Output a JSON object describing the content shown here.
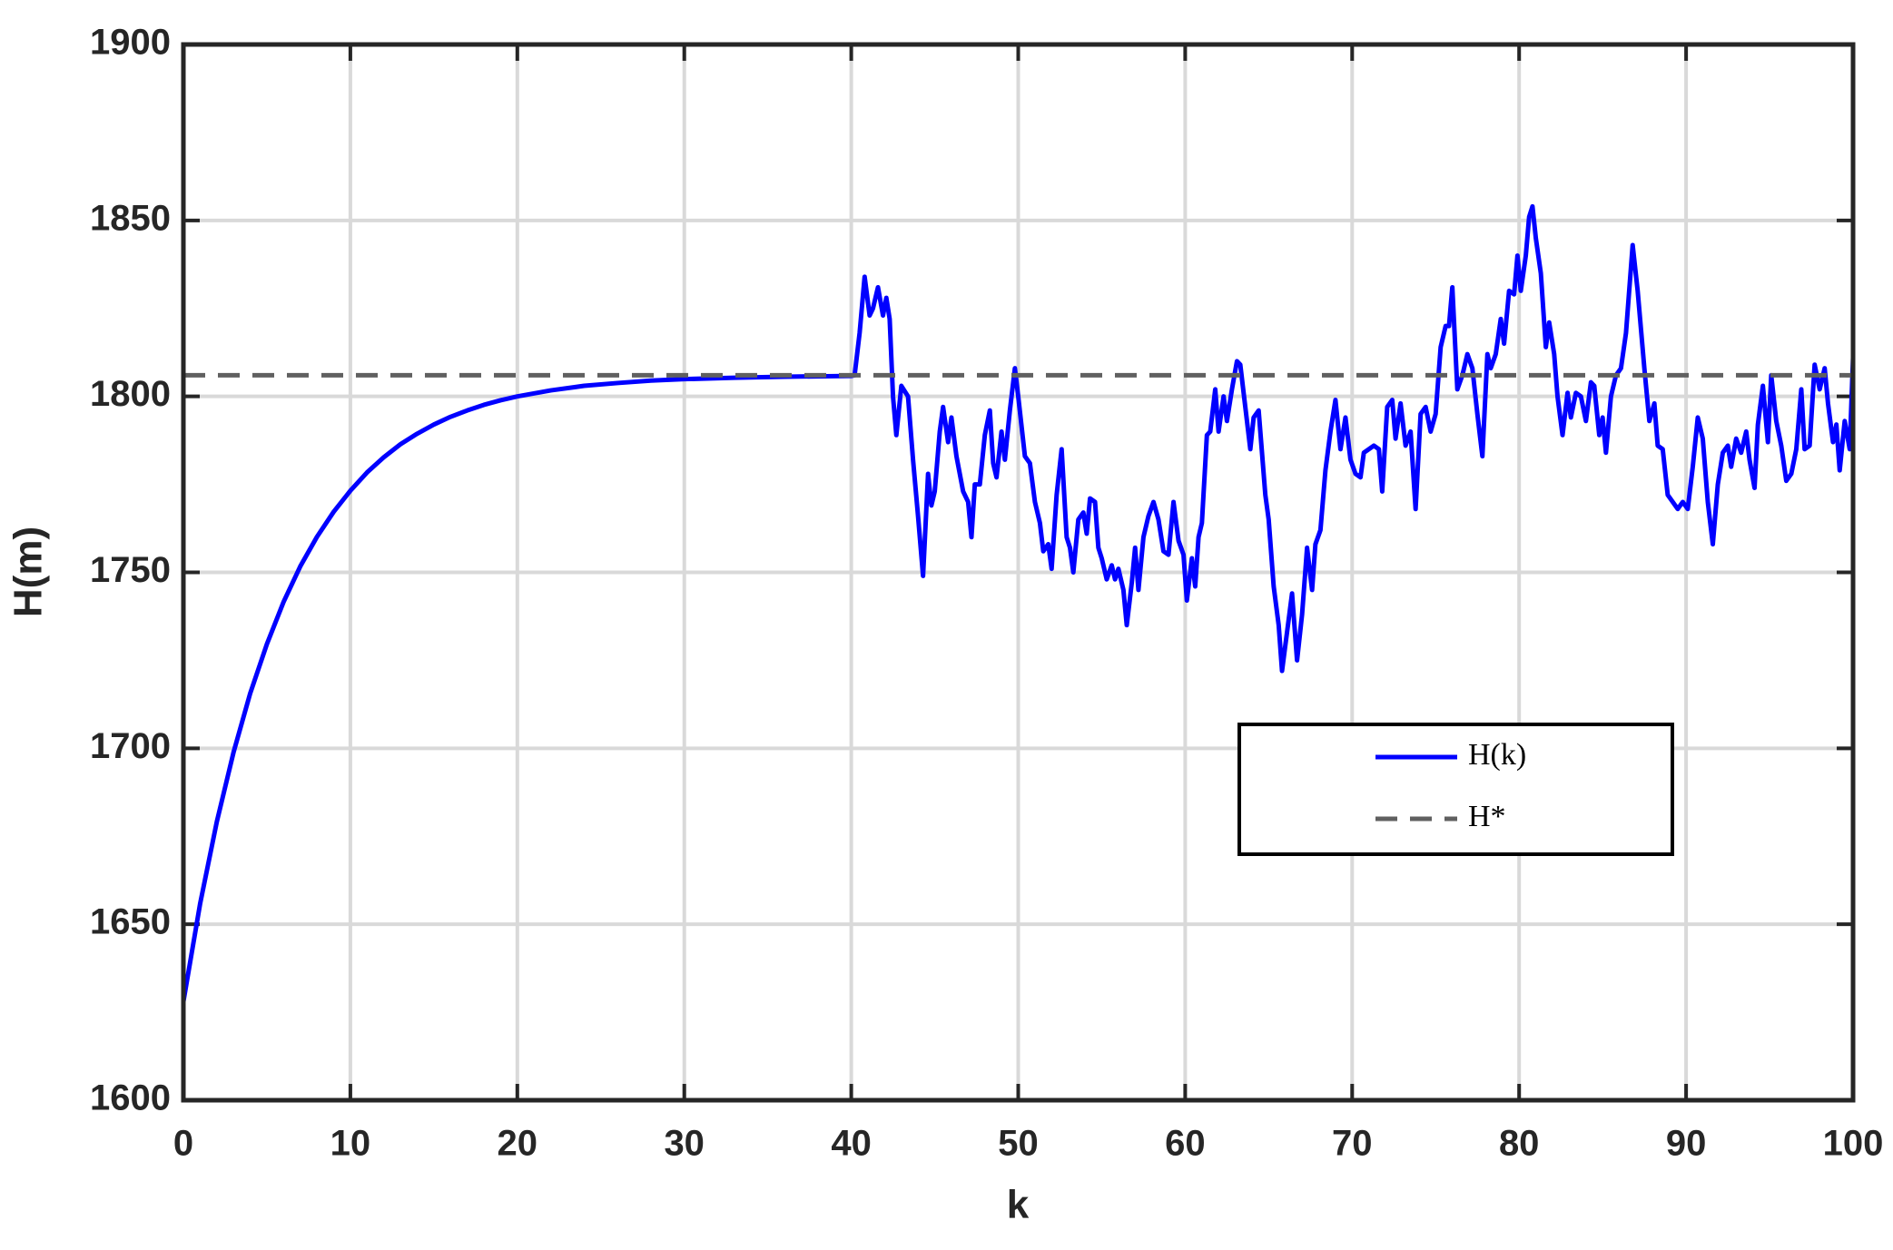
{
  "chart_data": {
    "type": "line",
    "xlabel": "k",
    "ylabel": "H(m)",
    "xlim": [
      0,
      100
    ],
    "xticks": [
      0,
      10,
      20,
      30,
      40,
      50,
      60,
      70,
      80,
      90,
      100
    ],
    "ylim": [
      1600,
      1900
    ],
    "yticks": [
      1600,
      1650,
      1700,
      1750,
      1800,
      1850,
      1900
    ],
    "grid": true,
    "series": [
      {
        "name": "H(k)",
        "color": "#0000ff",
        "x": [
          0,
          1,
          2,
          3,
          4,
          5,
          6,
          7,
          8,
          9,
          10,
          11,
          12,
          13,
          14,
          15,
          16,
          17,
          18,
          19,
          20,
          22,
          24,
          26,
          28,
          30,
          33,
          36,
          40,
          40.2,
          40.5,
          40.8,
          41.1,
          41.3,
          41.6,
          41.9,
          42.1,
          42.3,
          42.5,
          42.7,
          43.0,
          43.4,
          43.7,
          44.0,
          44.3,
          44.6,
          44.8,
          45.0,
          45.3,
          45.5,
          45.8,
          46.0,
          46.3,
          46.7,
          47.0,
          47.2,
          47.4,
          47.7,
          48.0,
          48.3,
          48.5,
          48.7,
          49.0,
          49.2,
          49.5,
          49.8,
          50.0,
          50.4,
          50.7,
          51.0,
          51.3,
          51.5,
          51.8,
          52.0,
          52.3,
          52.6,
          52.9,
          53.1,
          53.3,
          53.6,
          53.9,
          54.1,
          54.3,
          54.6,
          54.8,
          55.0,
          55.3,
          55.6,
          55.8,
          56.0,
          56.3,
          56.5,
          56.8,
          57.0,
          57.2,
          57.5,
          57.8,
          58.1,
          58.4,
          58.7,
          59.0,
          59.3,
          59.6,
          59.9,
          60.1,
          60.4,
          60.6,
          60.8,
          61.0,
          61.3,
          61.5,
          61.8,
          62.0,
          62.3,
          62.5,
          62.8,
          63.1,
          63.3,
          63.6,
          63.9,
          64.1,
          64.4,
          64.8,
          65.0,
          65.3,
          65.6,
          65.8,
          66.1,
          66.4,
          66.7,
          67.0,
          67.3,
          67.6,
          67.8,
          68.1,
          68.4,
          68.7,
          69.0,
          69.3,
          69.6,
          69.9,
          70.2,
          70.5,
          70.7,
          71.0,
          71.3,
          71.6,
          71.8,
          72.1,
          72.4,
          72.6,
          72.9,
          73.2,
          73.5,
          73.8,
          74.1,
          74.4,
          74.7,
          75.0,
          75.3,
          75.6,
          75.8,
          76.0,
          76.3,
          76.6,
          76.9,
          77.2,
          77.5,
          77.8,
          78.1,
          78.3,
          78.6,
          78.9,
          79.1,
          79.4,
          79.7,
          79.9,
          80.1,
          80.4,
          80.6,
          80.8,
          81.0,
          81.3,
          81.6,
          81.8,
          82.1,
          82.3,
          82.6,
          82.9,
          83.1,
          83.4,
          83.7,
          84.0,
          84.3,
          84.5,
          84.8,
          85.0,
          85.2,
          85.5,
          85.8,
          86.1,
          86.4,
          86.8,
          87.1,
          87.5,
          87.8,
          88.1,
          88.3,
          88.6,
          88.9,
          89.2,
          89.5,
          89.8,
          90.1,
          90.4,
          90.7,
          91.0,
          91.3,
          91.6,
          91.9,
          92.2,
          92.5,
          92.7,
          93.0,
          93.3,
          93.6,
          93.8,
          94.1,
          94.3,
          94.6,
          94.9,
          95.1,
          95.4,
          95.7,
          96.0,
          96.3,
          96.6,
          96.9,
          97.1,
          97.4,
          97.7,
          98.0,
          98.3,
          98.5,
          98.8,
          99.0,
          99.2,
          99.5,
          99.8,
          100
        ],
        "values": [
          1628,
          1655.8,
          1679.1,
          1698.8,
          1715.6,
          1729.6,
          1741.6,
          1751.7,
          1760.1,
          1767.2,
          1773.2,
          1778.4,
          1782.7,
          1786.4,
          1789.4,
          1792.0,
          1794.2,
          1796.0,
          1797.6,
          1798.9,
          1800.0,
          1801.7,
          1803.0,
          1803.8,
          1804.5,
          1804.9,
          1805.3,
          1805.6,
          1805.8,
          1806,
          1818,
          1834,
          1823,
          1825,
          1831,
          1823,
          1828,
          1822,
          1800,
          1789,
          1803,
          1800,
          1782,
          1766,
          1749,
          1778,
          1769,
          1773,
          1790,
          1797,
          1787,
          1794,
          1783,
          1773,
          1770,
          1760,
          1775,
          1775,
          1789,
          1796,
          1781,
          1777,
          1790,
          1782,
          1796,
          1808,
          1800,
          1783,
          1781,
          1770,
          1764,
          1756,
          1758,
          1751,
          1772,
          1785,
          1760,
          1757,
          1750,
          1765,
          1767,
          1761,
          1771,
          1770,
          1757,
          1754,
          1748,
          1752,
          1748,
          1751,
          1745,
          1735,
          1747,
          1757,
          1745,
          1760,
          1766,
          1770,
          1765,
          1756,
          1755,
          1770,
          1759,
          1755,
          1742,
          1754,
          1746,
          1760,
          1764,
          1789,
          1790,
          1802,
          1790,
          1800,
          1793,
          1802,
          1810,
          1809,
          1797,
          1785,
          1794,
          1796,
          1772,
          1765,
          1746,
          1735,
          1722,
          1733,
          1744,
          1725,
          1738,
          1757,
          1745,
          1758,
          1762,
          1779,
          1790,
          1799,
          1785,
          1794,
          1782,
          1778,
          1777,
          1784,
          1785,
          1786,
          1785,
          1773,
          1797,
          1799,
          1788,
          1798,
          1786,
          1790,
          1768,
          1795,
          1797,
          1790,
          1795,
          1814,
          1820,
          1820,
          1831,
          1802,
          1806,
          1812,
          1808,
          1795,
          1783,
          1812,
          1808,
          1812,
          1822,
          1815,
          1830,
          1829,
          1840,
          1830,
          1840,
          1851,
          1854,
          1845,
          1835,
          1814,
          1821,
          1812,
          1800,
          1789,
          1801,
          1794,
          1801,
          1800,
          1793,
          1804,
          1803,
          1789,
          1794,
          1784,
          1800,
          1806,
          1808,
          1818,
          1843,
          1830,
          1808,
          1793,
          1798,
          1786,
          1785,
          1772,
          1770,
          1768,
          1770,
          1768,
          1780,
          1794,
          1788,
          1770,
          1758,
          1775,
          1784,
          1786,
          1780,
          1788,
          1784,
          1790,
          1782,
          1774,
          1792,
          1803,
          1787,
          1806,
          1793,
          1786,
          1776,
          1778,
          1785,
          1802,
          1785,
          1786,
          1809,
          1802,
          1808,
          1798,
          1787,
          1792,
          1779,
          1793,
          1785,
          1811
        ]
      },
      {
        "name": "H*",
        "color": "#606060",
        "dashed": true,
        "x": [
          0,
          100
        ],
        "values": [
          1806,
          1806
        ]
      }
    ]
  }
}
